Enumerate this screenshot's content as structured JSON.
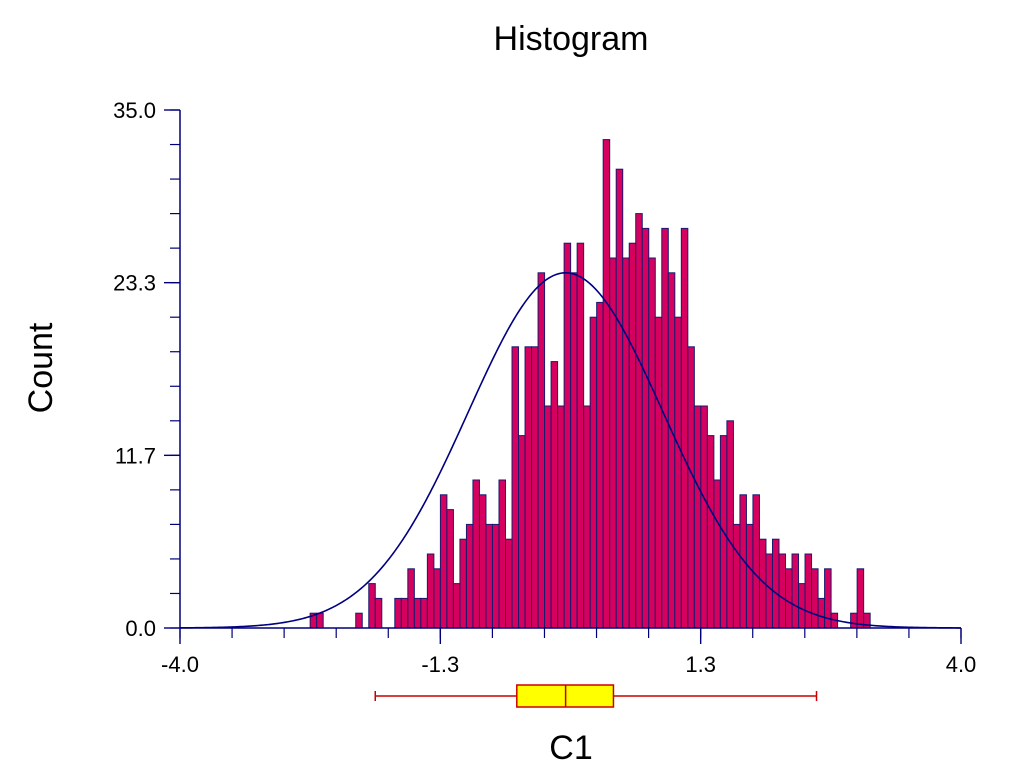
{
  "chart_data": {
    "type": "bar",
    "title": "Histogram",
    "xlabel": "C1",
    "ylabel": "Count",
    "xlim": [
      -4.0,
      4.0
    ],
    "ylim": [
      0.0,
      35.0
    ],
    "x_ticks": [
      "-4.0",
      "-1.3",
      "1.3",
      "4.0"
    ],
    "y_ticks": [
      "0.0",
      "11.7",
      "23.3",
      "35.0"
    ],
    "grid": false,
    "legend": "none",
    "bin_width": 0.0667,
    "bin_start": -2.6667,
    "counts": [
      1,
      1,
      0,
      0,
      0,
      0,
      0,
      1,
      0,
      3,
      2,
      0,
      0,
      2,
      2,
      4,
      2,
      2,
      5,
      4,
      9,
      8,
      3,
      6,
      7,
      10,
      9,
      7,
      7,
      10,
      6,
      19,
      13,
      19,
      19,
      24,
      15,
      18,
      15,
      26,
      24,
      26,
      15,
      21,
      22,
      33,
      25,
      31,
      25,
      26,
      28,
      27,
      25,
      21,
      27,
      24,
      21,
      27,
      19,
      15,
      15,
      13,
      10,
      13,
      14,
      7,
      9,
      7,
      9,
      6,
      5,
      6,
      5,
      4,
      5,
      3,
      5,
      4,
      2,
      4,
      1,
      0,
      0,
      1,
      4,
      1
    ],
    "fit_curve": {
      "type": "normal",
      "mean": -0.05,
      "sd": 1.0,
      "peak": 24.0
    },
    "boxplot": {
      "min": -2.0,
      "q1": -0.55,
      "median": -0.05,
      "q3": 0.44,
      "max": 2.52
    },
    "colors": {
      "bar_fill": "#d6005f",
      "bar_stroke": "#1a1a70",
      "axis": "#00007a",
      "curve": "#000080",
      "box_fill": "#ffff00",
      "box_stroke": "#cc0000"
    }
  }
}
